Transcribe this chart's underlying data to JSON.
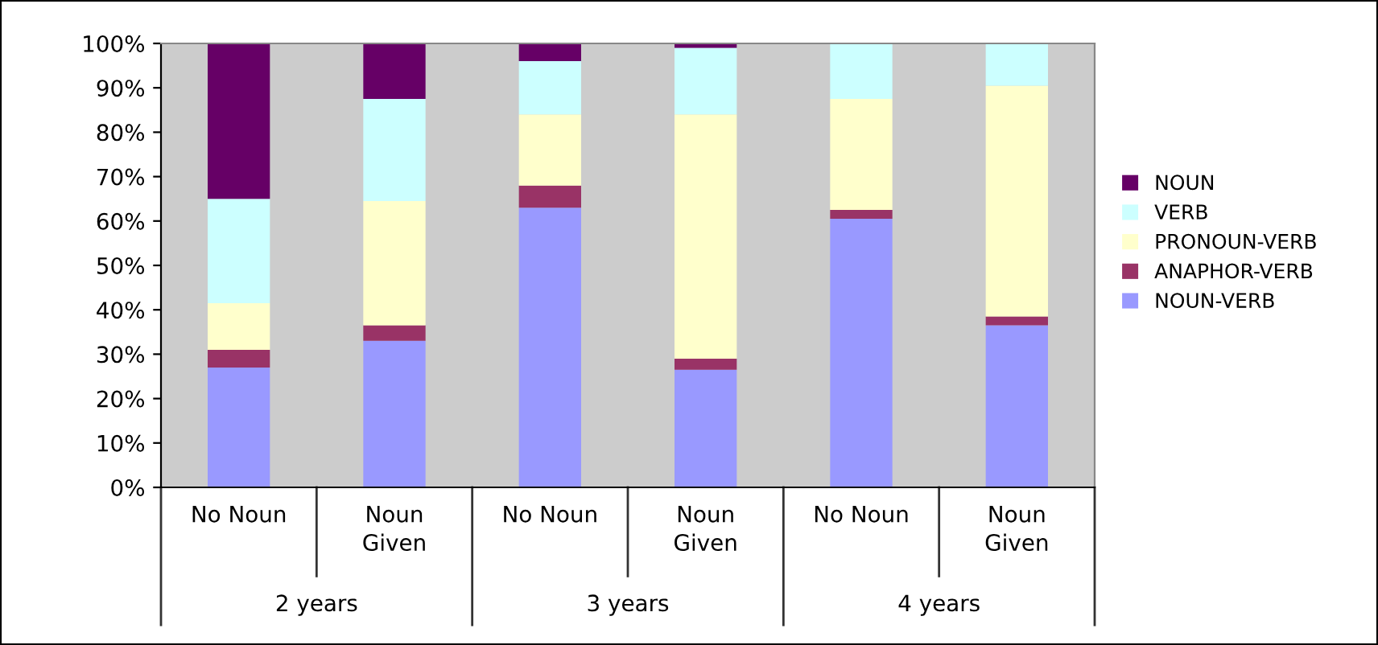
{
  "chart_data": {
    "type": "bar",
    "stacked": true,
    "categories": [
      "No Noun",
      "Noun\nGiven",
      "No Noun",
      "Noun\nGiven",
      "No Noun",
      "Noun\nGiven"
    ],
    "series": [
      {
        "name": "NOUN-VERB",
        "color": "#9999ff",
        "values": [
          27,
          33,
          63,
          26.5,
          60.5,
          36.5
        ]
      },
      {
        "name": "ANAPHOR-VERB",
        "color": "#993366",
        "values": [
          4,
          3.5,
          5,
          2.5,
          2,
          2
        ]
      },
      {
        "name": "PRONOUN-VERB",
        "color": "#ffffcc",
        "values": [
          10.5,
          28,
          16,
          55,
          25,
          52
        ]
      },
      {
        "name": "VERB",
        "color": "#ccffff",
        "values": [
          23.5,
          23,
          12,
          15,
          12.5,
          9.5
        ]
      },
      {
        "name": "NOUN",
        "color": "#660066",
        "values": [
          35,
          12.5,
          4,
          1,
          0,
          0
        ]
      }
    ],
    "ylim": [
      0,
      100
    ],
    "yticks": [
      {
        "value": 0,
        "label": "0%"
      },
      {
        "value": 10,
        "label": "10%"
      },
      {
        "value": 20,
        "label": "20%"
      },
      {
        "value": 30,
        "label": "30%"
      },
      {
        "value": 40,
        "label": "40%"
      },
      {
        "value": 50,
        "label": "50%"
      },
      {
        "value": 60,
        "label": "60%"
      },
      {
        "value": 70,
        "label": "70%"
      },
      {
        "value": 80,
        "label": "80%"
      },
      {
        "value": 90,
        "label": "90%"
      },
      {
        "value": 100,
        "label": "100%"
      }
    ],
    "annotations": [
      "2 years",
      "3 years",
      "4 years"
    ],
    "grid": false,
    "legend": "right"
  }
}
